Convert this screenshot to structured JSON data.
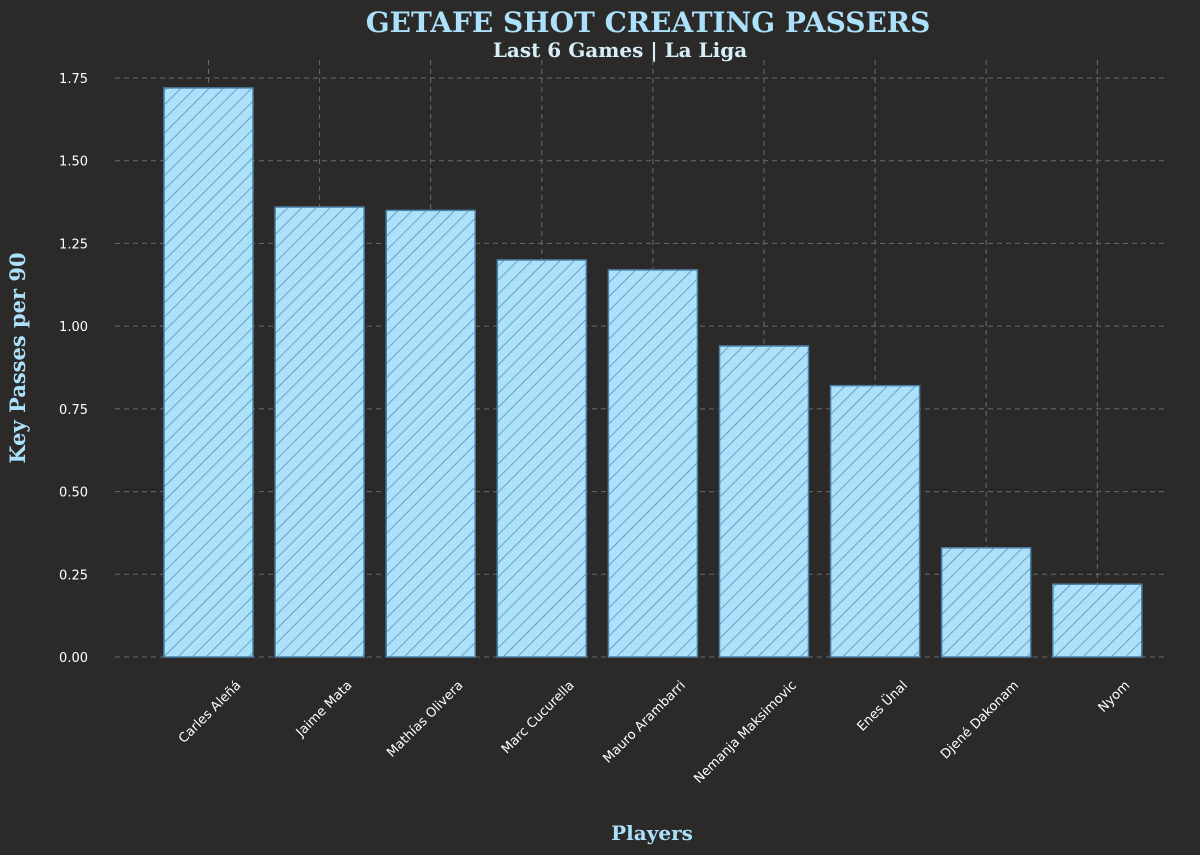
{
  "chart_data": {
    "type": "bar",
    "title": "GETAFE SHOT CREATING PASSERS",
    "subtitle": "Last 6 Games | La Liga",
    "xlabel": "Players",
    "ylabel": "Key Passes per 90",
    "categories": [
      "Carles Aleñá",
      "Jaime Mata",
      "Mathías Olivera",
      "Marc Cucurella",
      "Mauro Arambarri",
      "Nemanja Maksimovic",
      "Enes Ünal",
      "Djené Dakonam",
      "Nyom"
    ],
    "values": [
      1.72,
      1.36,
      1.35,
      1.2,
      1.17,
      0.94,
      0.82,
      0.33,
      0.22
    ],
    "ylim": [
      0,
      1.75
    ],
    "yticks": [
      "0.00",
      "0.25",
      "0.50",
      "0.75",
      "1.00",
      "1.25",
      "1.50",
      "1.75"
    ],
    "grid": true,
    "colors": {
      "background": "#2b2a29",
      "bar_fill": "#abe1fa",
      "bar_hatch": "#4a7fa6",
      "title": "#abe1fa",
      "subtitle": "#d6eef8",
      "grid": "#6b6b6b",
      "tick_text": "#ffffff"
    }
  }
}
